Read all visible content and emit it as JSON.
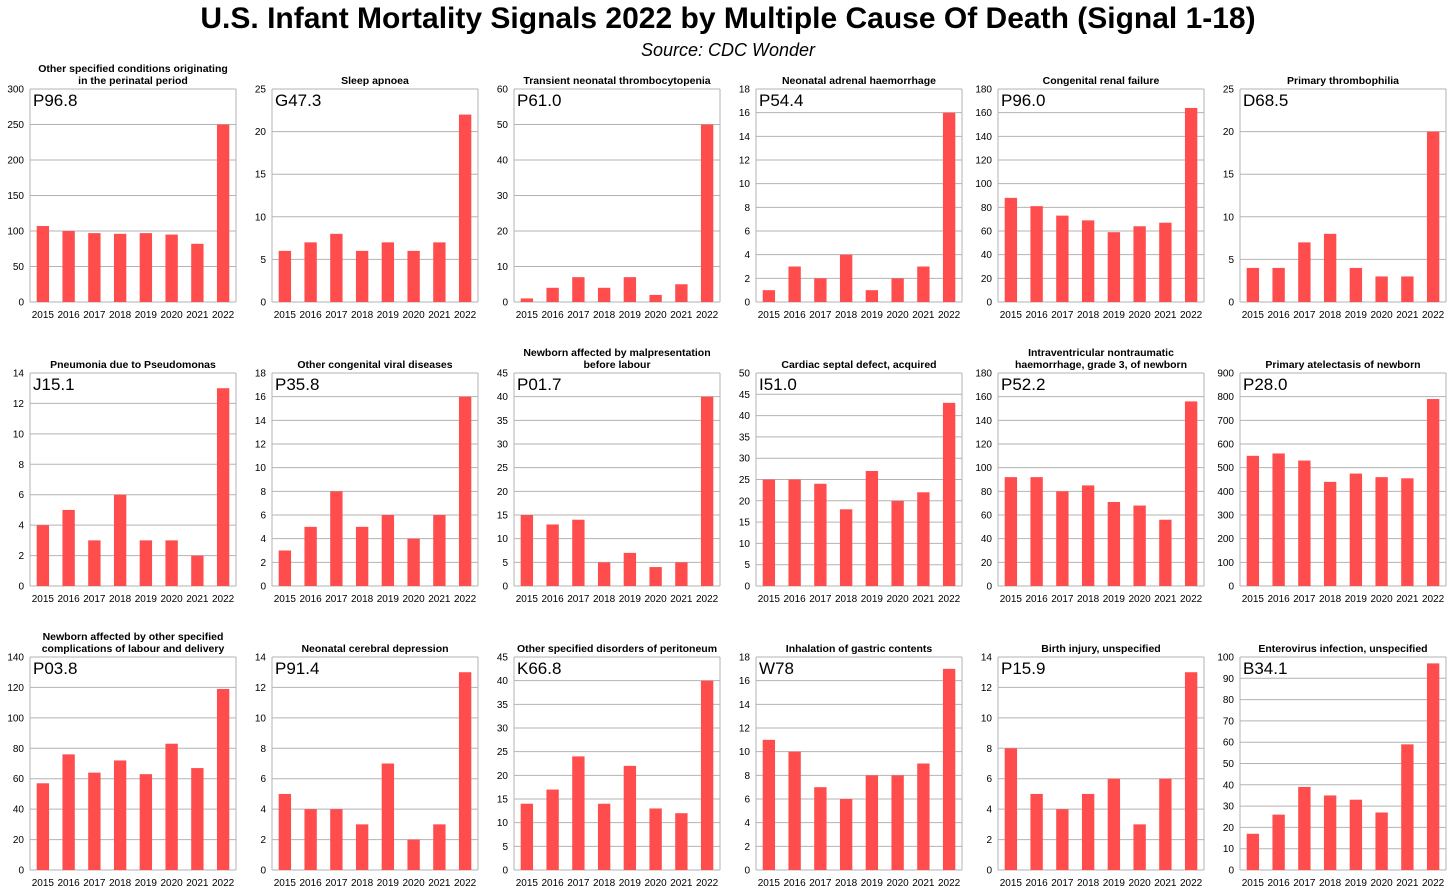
{
  "title": "U.S. Infant Mortality Signals 2022 by Multiple Cause Of Death (Signal 1-18)",
  "subtitle": "Source: CDC Wonder",
  "bar_color": "#ff4d4d",
  "chart_data": [
    {
      "type": "bar",
      "title": [
        "Other specified conditions originating",
        "in the perinatal period"
      ],
      "code": "P96.8",
      "categories": [
        "2015",
        "2016",
        "2017",
        "2018",
        "2019",
        "2020",
        "2021",
        "2022"
      ],
      "values": [
        107,
        100,
        97,
        96,
        97,
        95,
        82,
        250
      ],
      "yticks": [
        0,
        50,
        100,
        150,
        200,
        250,
        300
      ],
      "ylim": [
        0,
        300
      ]
    },
    {
      "type": "bar",
      "title": [
        "Sleep apnoea"
      ],
      "code": "G47.3",
      "categories": [
        "2015",
        "2016",
        "2017",
        "2018",
        "2019",
        "2020",
        "2021",
        "2022"
      ],
      "values": [
        6,
        7,
        8,
        6,
        7,
        6,
        7,
        22
      ],
      "yticks": [
        0,
        5,
        10,
        15,
        20,
        25
      ],
      "ylim": [
        0,
        25
      ]
    },
    {
      "type": "bar",
      "title": [
        "Transient neonatal thrombocytopenia"
      ],
      "code": "P61.0",
      "categories": [
        "2015",
        "2016",
        "2017",
        "2018",
        "2019",
        "2020",
        "2021",
        "2022"
      ],
      "values": [
        1,
        4,
        7,
        4,
        7,
        2,
        5,
        50
      ],
      "yticks": [
        0,
        10,
        20,
        30,
        40,
        50,
        60
      ],
      "ylim": [
        0,
        60
      ]
    },
    {
      "type": "bar",
      "title": [
        "Neonatal adrenal haemorrhage"
      ],
      "code": "P54.4",
      "categories": [
        "2015",
        "2016",
        "2017",
        "2018",
        "2019",
        "2020",
        "2021",
        "2022"
      ],
      "values": [
        1,
        3,
        2,
        4,
        1,
        2,
        3,
        16
      ],
      "yticks": [
        0,
        2,
        4,
        6,
        8,
        10,
        12,
        14,
        16,
        18
      ],
      "ylim": [
        0,
        18
      ]
    },
    {
      "type": "bar",
      "title": [
        "Congenital renal failure"
      ],
      "code": "P96.0",
      "categories": [
        "2015",
        "2016",
        "2017",
        "2018",
        "2019",
        "2020",
        "2021",
        "2022"
      ],
      "values": [
        88,
        81,
        73,
        69,
        59,
        64,
        67,
        164
      ],
      "yticks": [
        0,
        20,
        40,
        60,
        80,
        100,
        120,
        140,
        160,
        180
      ],
      "ylim": [
        0,
        180
      ]
    },
    {
      "type": "bar",
      "title": [
        "Primary thrombophilia"
      ],
      "code": "D68.5",
      "categories": [
        "2015",
        "2016",
        "2017",
        "2018",
        "2019",
        "2020",
        "2021",
        "2022"
      ],
      "values": [
        4,
        4,
        7,
        8,
        4,
        3,
        3,
        20
      ],
      "yticks": [
        0,
        5,
        10,
        15,
        20,
        25
      ],
      "ylim": [
        0,
        25
      ]
    },
    {
      "type": "bar",
      "title": [
        "Pneumonia due to Pseudomonas"
      ],
      "code": "J15.1",
      "categories": [
        "2015",
        "2016",
        "2017",
        "2018",
        "2019",
        "2020",
        "2021",
        "2022"
      ],
      "values": [
        4,
        5,
        3,
        6,
        3,
        3,
        2,
        13
      ],
      "yticks": [
        0,
        2,
        4,
        6,
        8,
        10,
        12,
        14
      ],
      "ylim": [
        0,
        14
      ]
    },
    {
      "type": "bar",
      "title": [
        "Other congenital viral diseases"
      ],
      "code": "P35.8",
      "categories": [
        "2015",
        "2016",
        "2017",
        "2018",
        "2019",
        "2020",
        "2021",
        "2022"
      ],
      "values": [
        3,
        5,
        8,
        5,
        6,
        4,
        6,
        16
      ],
      "yticks": [
        0,
        2,
        4,
        6,
        8,
        10,
        12,
        14,
        16,
        18
      ],
      "ylim": [
        0,
        18
      ]
    },
    {
      "type": "bar",
      "title": [
        "Newborn affected by malpresentation",
        "before labour"
      ],
      "code": "P01.7",
      "categories": [
        "2015",
        "2016",
        "2017",
        "2018",
        "2019",
        "2020",
        "2021",
        "2022"
      ],
      "values": [
        15,
        13,
        14,
        5,
        7,
        4,
        5,
        40
      ],
      "yticks": [
        0,
        5,
        10,
        15,
        20,
        25,
        30,
        35,
        40,
        45
      ],
      "ylim": [
        0,
        45
      ]
    },
    {
      "type": "bar",
      "title": [
        "Cardiac septal defect, acquired"
      ],
      "code": "I51.0",
      "categories": [
        "2015",
        "2016",
        "2017",
        "2018",
        "2019",
        "2020",
        "2021",
        "2022"
      ],
      "values": [
        25,
        25,
        24,
        18,
        27,
        20,
        22,
        43
      ],
      "yticks": [
        0,
        5,
        10,
        15,
        20,
        25,
        30,
        35,
        40,
        45,
        50
      ],
      "ylim": [
        0,
        50
      ]
    },
    {
      "type": "bar",
      "title": [
        "Intraventricular nontraumatic",
        "haemorrhage, grade 3, of newborn"
      ],
      "code": "P52.2",
      "categories": [
        "2015",
        "2016",
        "2017",
        "2018",
        "2019",
        "2020",
        "2021",
        "2022"
      ],
      "values": [
        92,
        92,
        80,
        85,
        71,
        68,
        56,
        156
      ],
      "yticks": [
        0,
        20,
        40,
        60,
        80,
        100,
        120,
        140,
        160,
        180
      ],
      "ylim": [
        0,
        180
      ]
    },
    {
      "type": "bar",
      "title": [
        "Primary atelectasis of newborn"
      ],
      "code": "P28.0",
      "categories": [
        "2015",
        "2016",
        "2017",
        "2018",
        "2019",
        "2020",
        "2021",
        "2022"
      ],
      "values": [
        550,
        560,
        530,
        440,
        475,
        460,
        455,
        790
      ],
      "yticks": [
        0,
        100,
        200,
        300,
        400,
        500,
        600,
        700,
        800,
        900
      ],
      "ylim": [
        0,
        900
      ]
    },
    {
      "type": "bar",
      "title": [
        "Newborn affected by other specified",
        "complications of labour and delivery"
      ],
      "code": "P03.8",
      "categories": [
        "2015",
        "2016",
        "2017",
        "2018",
        "2019",
        "2020",
        "2021",
        "2022"
      ],
      "values": [
        57,
        76,
        64,
        72,
        63,
        83,
        67,
        119
      ],
      "yticks": [
        0,
        20,
        40,
        60,
        80,
        100,
        120,
        140
      ],
      "ylim": [
        0,
        140
      ]
    },
    {
      "type": "bar",
      "title": [
        "Neonatal cerebral depression"
      ],
      "code": "P91.4",
      "categories": [
        "2015",
        "2016",
        "2017",
        "2018",
        "2019",
        "2020",
        "2021",
        "2022"
      ],
      "values": [
        5,
        4,
        4,
        3,
        7,
        2,
        3,
        13
      ],
      "yticks": [
        0,
        2,
        4,
        6,
        8,
        10,
        12,
        14
      ],
      "ylim": [
        0,
        14
      ]
    },
    {
      "type": "bar",
      "title": [
        "Other specified disorders of peritoneum"
      ],
      "code": "K66.8",
      "categories": [
        "2015",
        "2016",
        "2017",
        "2018",
        "2019",
        "2020",
        "2021",
        "2022"
      ],
      "values": [
        14,
        17,
        24,
        14,
        22,
        13,
        12,
        40
      ],
      "yticks": [
        0,
        5,
        10,
        15,
        20,
        25,
        30,
        35,
        40,
        45
      ],
      "ylim": [
        0,
        45
      ]
    },
    {
      "type": "bar",
      "title": [
        "Inhalation of gastric contents"
      ],
      "code": "W78",
      "categories": [
        "2015",
        "2016",
        "2017",
        "2018",
        "2019",
        "2020",
        "2021",
        "2022"
      ],
      "values": [
        11,
        10,
        7,
        6,
        8,
        8,
        9,
        17
      ],
      "yticks": [
        0,
        2,
        4,
        6,
        8,
        10,
        12,
        14,
        16,
        18
      ],
      "ylim": [
        0,
        18
      ]
    },
    {
      "type": "bar",
      "title": [
        "Birth injury, unspecified"
      ],
      "code": "P15.9",
      "categories": [
        "2015",
        "2016",
        "2017",
        "2018",
        "2019",
        "2020",
        "2021",
        "2022"
      ],
      "values": [
        8,
        5,
        4,
        5,
        6,
        3,
        6,
        13
      ],
      "yticks": [
        0,
        2,
        4,
        6,
        8,
        10,
        12,
        14
      ],
      "ylim": [
        0,
        14
      ]
    },
    {
      "type": "bar",
      "title": [
        "Enterovirus infection, unspecified"
      ],
      "code": "B34.1",
      "categories": [
        "2015",
        "2016",
        "2017",
        "2018",
        "2019",
        "2020",
        "2021",
        "2022"
      ],
      "values": [
        17,
        26,
        39,
        35,
        33,
        27,
        59,
        97
      ],
      "yticks": [
        0,
        10,
        20,
        30,
        40,
        50,
        60,
        70,
        80,
        90,
        100
      ],
      "ylim": [
        0,
        100
      ]
    }
  ]
}
